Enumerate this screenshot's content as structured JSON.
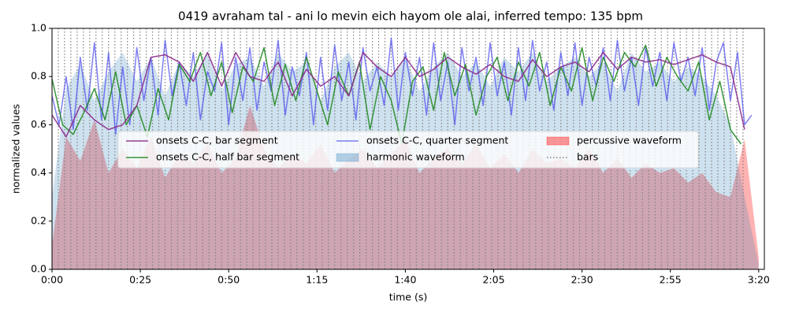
{
  "chart_data": {
    "type": "line",
    "title": "0419 avraham tal - ani lo mevin eich hayom ole alai, inferred tempo: 135 bpm",
    "xlabel": "time (s)",
    "ylabel": "normalized values",
    "xlim": [
      0,
      201.6
    ],
    "ylim": [
      0,
      1
    ],
    "xticks": [
      {
        "value": 0,
        "label": "0:00"
      },
      {
        "value": 25,
        "label": "0:25"
      },
      {
        "value": 50,
        "label": "0:50"
      },
      {
        "value": 75,
        "label": "1:15"
      },
      {
        "value": 100,
        "label": "1:40"
      },
      {
        "value": 125,
        "label": "2:05"
      },
      {
        "value": 150,
        "label": "2:30"
      },
      {
        "value": 175,
        "label": "2:55"
      },
      {
        "value": 200,
        "label": "3:20"
      }
    ],
    "yticks": [
      {
        "value": 0,
        "label": "0.0"
      },
      {
        "value": 0.2,
        "label": "0.2"
      },
      {
        "value": 0.4,
        "label": "0.4"
      },
      {
        "value": 0.6,
        "label": "0.6"
      },
      {
        "value": 0.8,
        "label": "0.8"
      },
      {
        "value": 1,
        "label": "1.0"
      }
    ],
    "grid": false,
    "legend": "center",
    "series": [
      {
        "name": "onsets C-C, bar segment",
        "kind": "line",
        "color": "#8b2a8b",
        "alpha": 0.9,
        "x": [
          0,
          4,
          8,
          12,
          16,
          20,
          24,
          28,
          32,
          36,
          40,
          44,
          48,
          52,
          56,
          60,
          64,
          68,
          72,
          76,
          80,
          84,
          88,
          92,
          96,
          100,
          104,
          108,
          112,
          116,
          120,
          124,
          128,
          132,
          136,
          140,
          144,
          148,
          152,
          156,
          160,
          164,
          168,
          172,
          176,
          180,
          184,
          188,
          192,
          196
        ],
        "values": [
          0.64,
          0.55,
          0.68,
          0.62,
          0.58,
          0.6,
          0.68,
          0.88,
          0.89,
          0.86,
          0.78,
          0.9,
          0.76,
          0.9,
          0.8,
          0.78,
          0.86,
          0.72,
          0.83,
          0.76,
          0.8,
          0.72,
          0.9,
          0.84,
          0.8,
          0.88,
          0.8,
          0.83,
          0.88,
          0.84,
          0.81,
          0.85,
          0.8,
          0.78,
          0.87,
          0.8,
          0.84,
          0.86,
          0.82,
          0.9,
          0.83,
          0.88,
          0.86,
          0.87,
          0.85,
          0.87,
          0.89,
          0.86,
          0.84,
          0.58
        ]
      },
      {
        "name": "onsets C-C, half bar segment",
        "kind": "line",
        "color": "#238b23",
        "alpha": 0.9,
        "x": [
          0,
          3,
          6,
          9,
          12,
          15,
          18,
          21,
          24,
          27,
          30,
          33,
          36,
          39,
          42,
          45,
          48,
          51,
          54,
          57,
          60,
          63,
          66,
          69,
          72,
          75,
          78,
          81,
          84,
          87,
          90,
          93,
          96,
          99,
          102,
          105,
          108,
          111,
          114,
          117,
          120,
          123,
          126,
          129,
          132,
          135,
          138,
          141,
          144,
          147,
          150,
          153,
          156,
          159,
          162,
          165,
          168,
          171,
          174,
          177,
          180,
          183,
          186,
          189,
          192,
          195
        ],
        "values": [
          0.79,
          0.6,
          0.56,
          0.65,
          0.75,
          0.62,
          0.82,
          0.6,
          0.68,
          0.55,
          0.75,
          0.62,
          0.85,
          0.78,
          0.9,
          0.72,
          0.86,
          0.65,
          0.84,
          0.78,
          0.92,
          0.68,
          0.85,
          0.7,
          0.88,
          0.74,
          0.6,
          0.82,
          0.72,
          0.86,
          0.58,
          0.8,
          0.7,
          0.52,
          0.78,
          0.84,
          0.66,
          0.9,
          0.72,
          0.85,
          0.64,
          0.8,
          0.88,
          0.7,
          0.86,
          0.76,
          0.9,
          0.68,
          0.84,
          0.74,
          0.92,
          0.7,
          0.88,
          0.78,
          0.9,
          0.84,
          0.93,
          0.76,
          0.88,
          0.8,
          0.74,
          0.86,
          0.62,
          0.78,
          0.58,
          0.52
        ]
      },
      {
        "name": "onsets C-C, quarter segment",
        "kind": "line",
        "color": "#4848f0",
        "alpha": 0.7,
        "x": [
          0,
          2,
          4,
          6,
          8,
          10,
          12,
          14,
          16,
          18,
          20,
          22,
          24,
          26,
          28,
          30,
          32,
          34,
          36,
          38,
          40,
          42,
          44,
          46,
          48,
          50,
          52,
          54,
          56,
          58,
          60,
          62,
          64,
          66,
          68,
          70,
          72,
          74,
          76,
          78,
          80,
          82,
          84,
          86,
          88,
          90,
          92,
          94,
          96,
          98,
          100,
          102,
          104,
          106,
          108,
          110,
          112,
          114,
          116,
          118,
          120,
          122,
          124,
          126,
          128,
          130,
          132,
          134,
          136,
          138,
          140,
          142,
          144,
          146,
          148,
          150,
          152,
          154,
          156,
          158,
          160,
          162,
          164,
          166,
          168,
          170,
          172,
          174,
          176,
          178,
          180,
          182,
          184,
          186,
          188,
          190,
          192,
          194,
          196,
          198
        ],
        "values": [
          0.72,
          0.6,
          0.8,
          0.58,
          0.88,
          0.66,
          0.94,
          0.62,
          0.9,
          0.56,
          0.84,
          0.6,
          0.92,
          0.7,
          0.88,
          0.64,
          0.95,
          0.72,
          0.86,
          0.68,
          0.9,
          0.62,
          0.82,
          0.74,
          0.94,
          0.6,
          0.88,
          0.7,
          0.92,
          0.66,
          0.86,
          0.74,
          0.95,
          0.64,
          0.84,
          0.72,
          0.9,
          0.6,
          0.88,
          0.66,
          0.93,
          0.7,
          0.86,
          0.62,
          0.92,
          0.74,
          0.84,
          0.68,
          0.96,
          0.66,
          0.9,
          0.72,
          0.88,
          0.64,
          0.94,
          0.7,
          0.86,
          0.6,
          0.92,
          0.74,
          0.88,
          0.68,
          0.94,
          0.72,
          0.86,
          0.64,
          0.92,
          0.7,
          0.95,
          0.74,
          0.86,
          0.66,
          0.9,
          0.72,
          0.94,
          0.68,
          0.88,
          0.76,
          0.92,
          0.7,
          0.95,
          0.74,
          0.88,
          0.68,
          0.92,
          0.76,
          0.9,
          0.7,
          0.94,
          0.78,
          0.88,
          0.72,
          0.92,
          0.66,
          0.86,
          0.94,
          0.7,
          0.9,
          0.6,
          0.64
        ]
      },
      {
        "name": "harmonic waveform",
        "kind": "area",
        "color": "#1f77b4",
        "alpha": 0.22,
        "x": [
          0,
          4,
          8,
          12,
          16,
          20,
          24,
          28,
          32,
          36,
          40,
          44,
          48,
          52,
          56,
          60,
          64,
          68,
          72,
          76,
          80,
          84,
          88,
          92,
          96,
          100,
          104,
          108,
          112,
          116,
          120,
          124,
          128,
          132,
          136,
          140,
          144,
          148,
          152,
          156,
          160,
          164,
          168,
          172,
          176,
          180,
          184,
          188,
          192,
          196,
          200
        ],
        "values": [
          0.3,
          0.75,
          0.85,
          0.7,
          0.82,
          0.9,
          0.78,
          0.88,
          0.72,
          0.86,
          0.8,
          0.9,
          0.74,
          0.85,
          0.88,
          0.76,
          0.9,
          0.82,
          0.86,
          0.7,
          0.84,
          0.9,
          0.78,
          0.86,
          0.8,
          0.88,
          0.74,
          0.84,
          0.9,
          0.8,
          0.86,
          0.76,
          0.88,
          0.82,
          0.9,
          0.78,
          0.84,
          0.88,
          0.8,
          0.86,
          0.74,
          0.9,
          0.82,
          0.86,
          0.78,
          0.84,
          0.8,
          0.72,
          0.6,
          0.3,
          0.02
        ]
      },
      {
        "name": "percussive waveform",
        "kind": "area",
        "color": "#ff0000",
        "alpha": 0.3,
        "x": [
          0,
          4,
          8,
          12,
          16,
          20,
          24,
          28,
          32,
          36,
          40,
          44,
          48,
          52,
          56,
          60,
          64,
          68,
          72,
          76,
          80,
          84,
          88,
          92,
          96,
          100,
          104,
          108,
          112,
          116,
          120,
          124,
          128,
          132,
          136,
          140,
          144,
          148,
          152,
          156,
          160,
          164,
          168,
          172,
          176,
          180,
          184,
          188,
          192,
          196,
          200
        ],
        "values": [
          0.1,
          0.55,
          0.45,
          0.62,
          0.4,
          0.5,
          0.42,
          0.55,
          0.38,
          0.48,
          0.44,
          0.52,
          0.4,
          0.46,
          0.68,
          0.5,
          0.42,
          0.48,
          0.44,
          0.52,
          0.4,
          0.46,
          0.5,
          0.42,
          0.48,
          0.54,
          0.4,
          0.46,
          0.5,
          0.44,
          0.52,
          0.42,
          0.48,
          0.4,
          0.5,
          0.44,
          0.46,
          0.42,
          0.5,
          0.4,
          0.46,
          0.38,
          0.44,
          0.4,
          0.42,
          0.36,
          0.4,
          0.32,
          0.3,
          0.54,
          0.05
        ]
      },
      {
        "name": "bars",
        "kind": "vline",
        "color": "#808080",
        "alpha": 1,
        "x": [
          0,
          1.78,
          3.56,
          5.33,
          7.11,
          8.89,
          10.67,
          12.44,
          14.22,
          16,
          17.78,
          19.56,
          21.33,
          23.11,
          24.89,
          26.67,
          28.44,
          30.22,
          32,
          33.78,
          35.56,
          37.33,
          39.11,
          40.89,
          42.67,
          44.44,
          46.22,
          48,
          49.78,
          51.56,
          53.33,
          55.11,
          56.89,
          58.67,
          60.44,
          62.22,
          64,
          65.78,
          67.56,
          69.33,
          71.11,
          72.89,
          74.67,
          76.44,
          78.22,
          80,
          81.78,
          83.56,
          85.33,
          87.11,
          88.89,
          90.67,
          92.44,
          94.22,
          96,
          97.78,
          99.56,
          101.33,
          103.11,
          104.89,
          106.67,
          108.44,
          110.22,
          112,
          113.78,
          115.56,
          117.33,
          119.11,
          120.89,
          122.67,
          124.44,
          126.22,
          128,
          129.78,
          131.56,
          133.33,
          135.11,
          136.89,
          138.67,
          140.44,
          142.22,
          144,
          145.78,
          147.56,
          149.33,
          151.11,
          152.89,
          154.67,
          156.44,
          158.22,
          160,
          161.78,
          163.56,
          165.33,
          167.11,
          168.89,
          170.67,
          172.44,
          174.22,
          176,
          177.78,
          179.56,
          181.33,
          183.11,
          184.89,
          186.67,
          188.44,
          190.22,
          192,
          193.78,
          195.56
        ]
      }
    ]
  }
}
